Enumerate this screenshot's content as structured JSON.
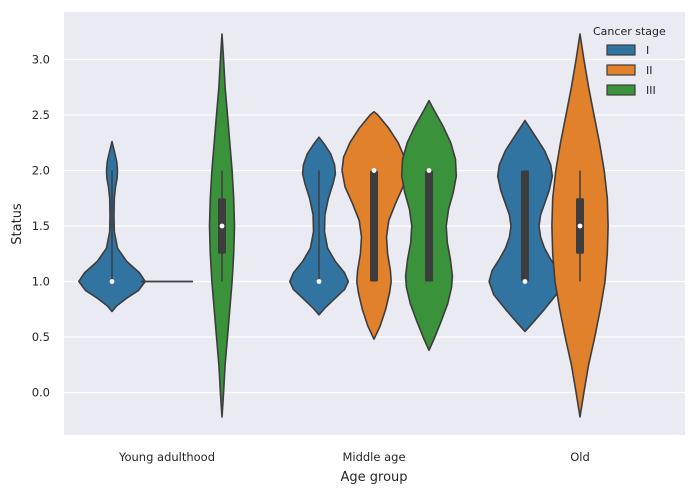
{
  "chart_data": {
    "type": "violin",
    "xlabel": "Age group",
    "ylabel": "Status",
    "ylim": [
      -0.38,
      3.4
    ],
    "yticks": [
      "0.0",
      "0.5",
      "1.0",
      "1.5",
      "2.0",
      "2.5",
      "3.0"
    ],
    "categories": [
      "Young adulthood",
      "Middle age",
      "Old"
    ],
    "grid": true,
    "legend": {
      "title": "Cancer stage",
      "position": "top-right"
    },
    "series": [
      {
        "name": "I",
        "color": "#3274a1",
        "violins": [
          {
            "category": "Young adulthood",
            "min": 0.73,
            "max": 2.26,
            "median": 1.0,
            "q1": 1.0,
            "q3": 1.0,
            "profile": [
              [
                0.73,
                0.0
              ],
              [
                0.78,
                0.12
              ],
              [
                0.85,
                0.38
              ],
              [
                0.92,
                0.68
              ],
              [
                1.0,
                0.85
              ],
              [
                1.08,
                0.7
              ],
              [
                1.18,
                0.38
              ],
              [
                1.3,
                0.14
              ],
              [
                1.45,
                0.06
              ],
              [
                1.6,
                0.05
              ],
              [
                1.75,
                0.06
              ],
              [
                1.85,
                0.09
              ],
              [
                1.93,
                0.13
              ],
              [
                2.0,
                0.14
              ],
              [
                2.08,
                0.12
              ],
              [
                2.16,
                0.07
              ],
              [
                2.26,
                0.0
              ]
            ]
          },
          {
            "category": "Middle age",
            "min": 0.7,
            "max": 2.3,
            "median": 1.0,
            "q1": 1.0,
            "q3": 1.0,
            "profile": [
              [
                0.7,
                0.0
              ],
              [
                0.76,
                0.15
              ],
              [
                0.85,
                0.42
              ],
              [
                0.93,
                0.66
              ],
              [
                1.0,
                0.75
              ],
              [
                1.08,
                0.65
              ],
              [
                1.18,
                0.42
              ],
              [
                1.3,
                0.22
              ],
              [
                1.45,
                0.14
              ],
              [
                1.6,
                0.15
              ],
              [
                1.75,
                0.24
              ],
              [
                1.88,
                0.36
              ],
              [
                1.97,
                0.42
              ],
              [
                2.05,
                0.4
              ],
              [
                2.15,
                0.3
              ],
              [
                2.23,
                0.15
              ],
              [
                2.3,
                0.0
              ]
            ]
          },
          {
            "category": "Old",
            "min": 0.55,
            "max": 2.45,
            "median": 1.0,
            "q1": 1.0,
            "q3": 2.0,
            "profile": [
              [
                0.55,
                0.0
              ],
              [
                0.62,
                0.18
              ],
              [
                0.75,
                0.5
              ],
              [
                0.88,
                0.8
              ],
              [
                1.0,
                0.92
              ],
              [
                1.1,
                0.84
              ],
              [
                1.2,
                0.66
              ],
              [
                1.3,
                0.5
              ],
              [
                1.4,
                0.4
              ],
              [
                1.5,
                0.36
              ],
              [
                1.6,
                0.4
              ],
              [
                1.7,
                0.5
              ],
              [
                1.82,
                0.62
              ],
              [
                1.95,
                0.7
              ],
              [
                2.05,
                0.66
              ],
              [
                2.18,
                0.5
              ],
              [
                2.3,
                0.28
              ],
              [
                2.45,
                0.0
              ]
            ]
          }
        ]
      },
      {
        "name": "II",
        "color": "#e1812c",
        "violins": [
          {
            "category": "Middle age",
            "min": 0.48,
            "max": 2.53,
            "median": 2.0,
            "q1": 1.0,
            "q3": 2.0,
            "profile": [
              [
                0.48,
                0.0
              ],
              [
                0.6,
                0.16
              ],
              [
                0.75,
                0.3
              ],
              [
                0.9,
                0.4
              ],
              [
                1.0,
                0.44
              ],
              [
                1.1,
                0.42
              ],
              [
                1.25,
                0.35
              ],
              [
                1.4,
                0.32
              ],
              [
                1.55,
                0.38
              ],
              [
                1.7,
                0.55
              ],
              [
                1.85,
                0.74
              ],
              [
                2.0,
                0.82
              ],
              [
                2.12,
                0.78
              ],
              [
                2.25,
                0.62
              ],
              [
                2.38,
                0.38
              ],
              [
                2.5,
                0.1
              ],
              [
                2.53,
                0.0
              ]
            ]
          },
          {
            "category": "Old",
            "min": -0.22,
            "max": 3.23,
            "median": 1.5,
            "q1": 1.25,
            "q3": 1.75,
            "profile": [
              [
                -0.22,
                0.0
              ],
              [
                0.0,
                0.1
              ],
              [
                0.25,
                0.22
              ],
              [
                0.5,
                0.38
              ],
              [
                0.75,
                0.52
              ],
              [
                1.0,
                0.64
              ],
              [
                1.25,
                0.7
              ],
              [
                1.5,
                0.72
              ],
              [
                1.75,
                0.7
              ],
              [
                2.0,
                0.62
              ],
              [
                2.25,
                0.5
              ],
              [
                2.5,
                0.36
              ],
              [
                2.75,
                0.22
              ],
              [
                3.0,
                0.1
              ],
              [
                3.23,
                0.0
              ]
            ]
          }
        ]
      },
      {
        "name": "III",
        "color": "#3a923a",
        "violins": [
          {
            "category": "Young adulthood",
            "min": -0.22,
            "max": 3.23,
            "median": 1.5,
            "q1": 1.25,
            "q3": 1.75,
            "profile": [
              [
                -0.22,
                0.0
              ],
              [
                0.0,
                0.04
              ],
              [
                0.25,
                0.08
              ],
              [
                0.5,
                0.14
              ],
              [
                0.75,
                0.2
              ],
              [
                1.0,
                0.26
              ],
              [
                1.25,
                0.3
              ],
              [
                1.5,
                0.32
              ],
              [
                1.75,
                0.3
              ],
              [
                2.0,
                0.26
              ],
              [
                2.25,
                0.2
              ],
              [
                2.5,
                0.14
              ],
              [
                2.75,
                0.08
              ],
              [
                3.0,
                0.04
              ],
              [
                3.23,
                0.0
              ]
            ]
          },
          {
            "category": "Middle age",
            "min": 0.38,
            "max": 2.63,
            "median": 2.0,
            "q1": 1.0,
            "q3": 2.0,
            "profile": [
              [
                0.38,
                0.0
              ],
              [
                0.5,
                0.15
              ],
              [
                0.65,
                0.32
              ],
              [
                0.8,
                0.48
              ],
              [
                0.95,
                0.58
              ],
              [
                1.05,
                0.6
              ],
              [
                1.2,
                0.55
              ],
              [
                1.35,
                0.47
              ],
              [
                1.5,
                0.44
              ],
              [
                1.65,
                0.5
              ],
              [
                1.8,
                0.62
              ],
              [
                1.95,
                0.7
              ],
              [
                2.1,
                0.68
              ],
              [
                2.25,
                0.56
              ],
              [
                2.4,
                0.36
              ],
              [
                2.55,
                0.12
              ],
              [
                2.63,
                0.0
              ]
            ]
          }
        ]
      }
    ],
    "extra_lines": [
      {
        "category": "Young adulthood",
        "series": "II",
        "y": 1.0,
        "color": "#3d3d3d"
      }
    ]
  }
}
